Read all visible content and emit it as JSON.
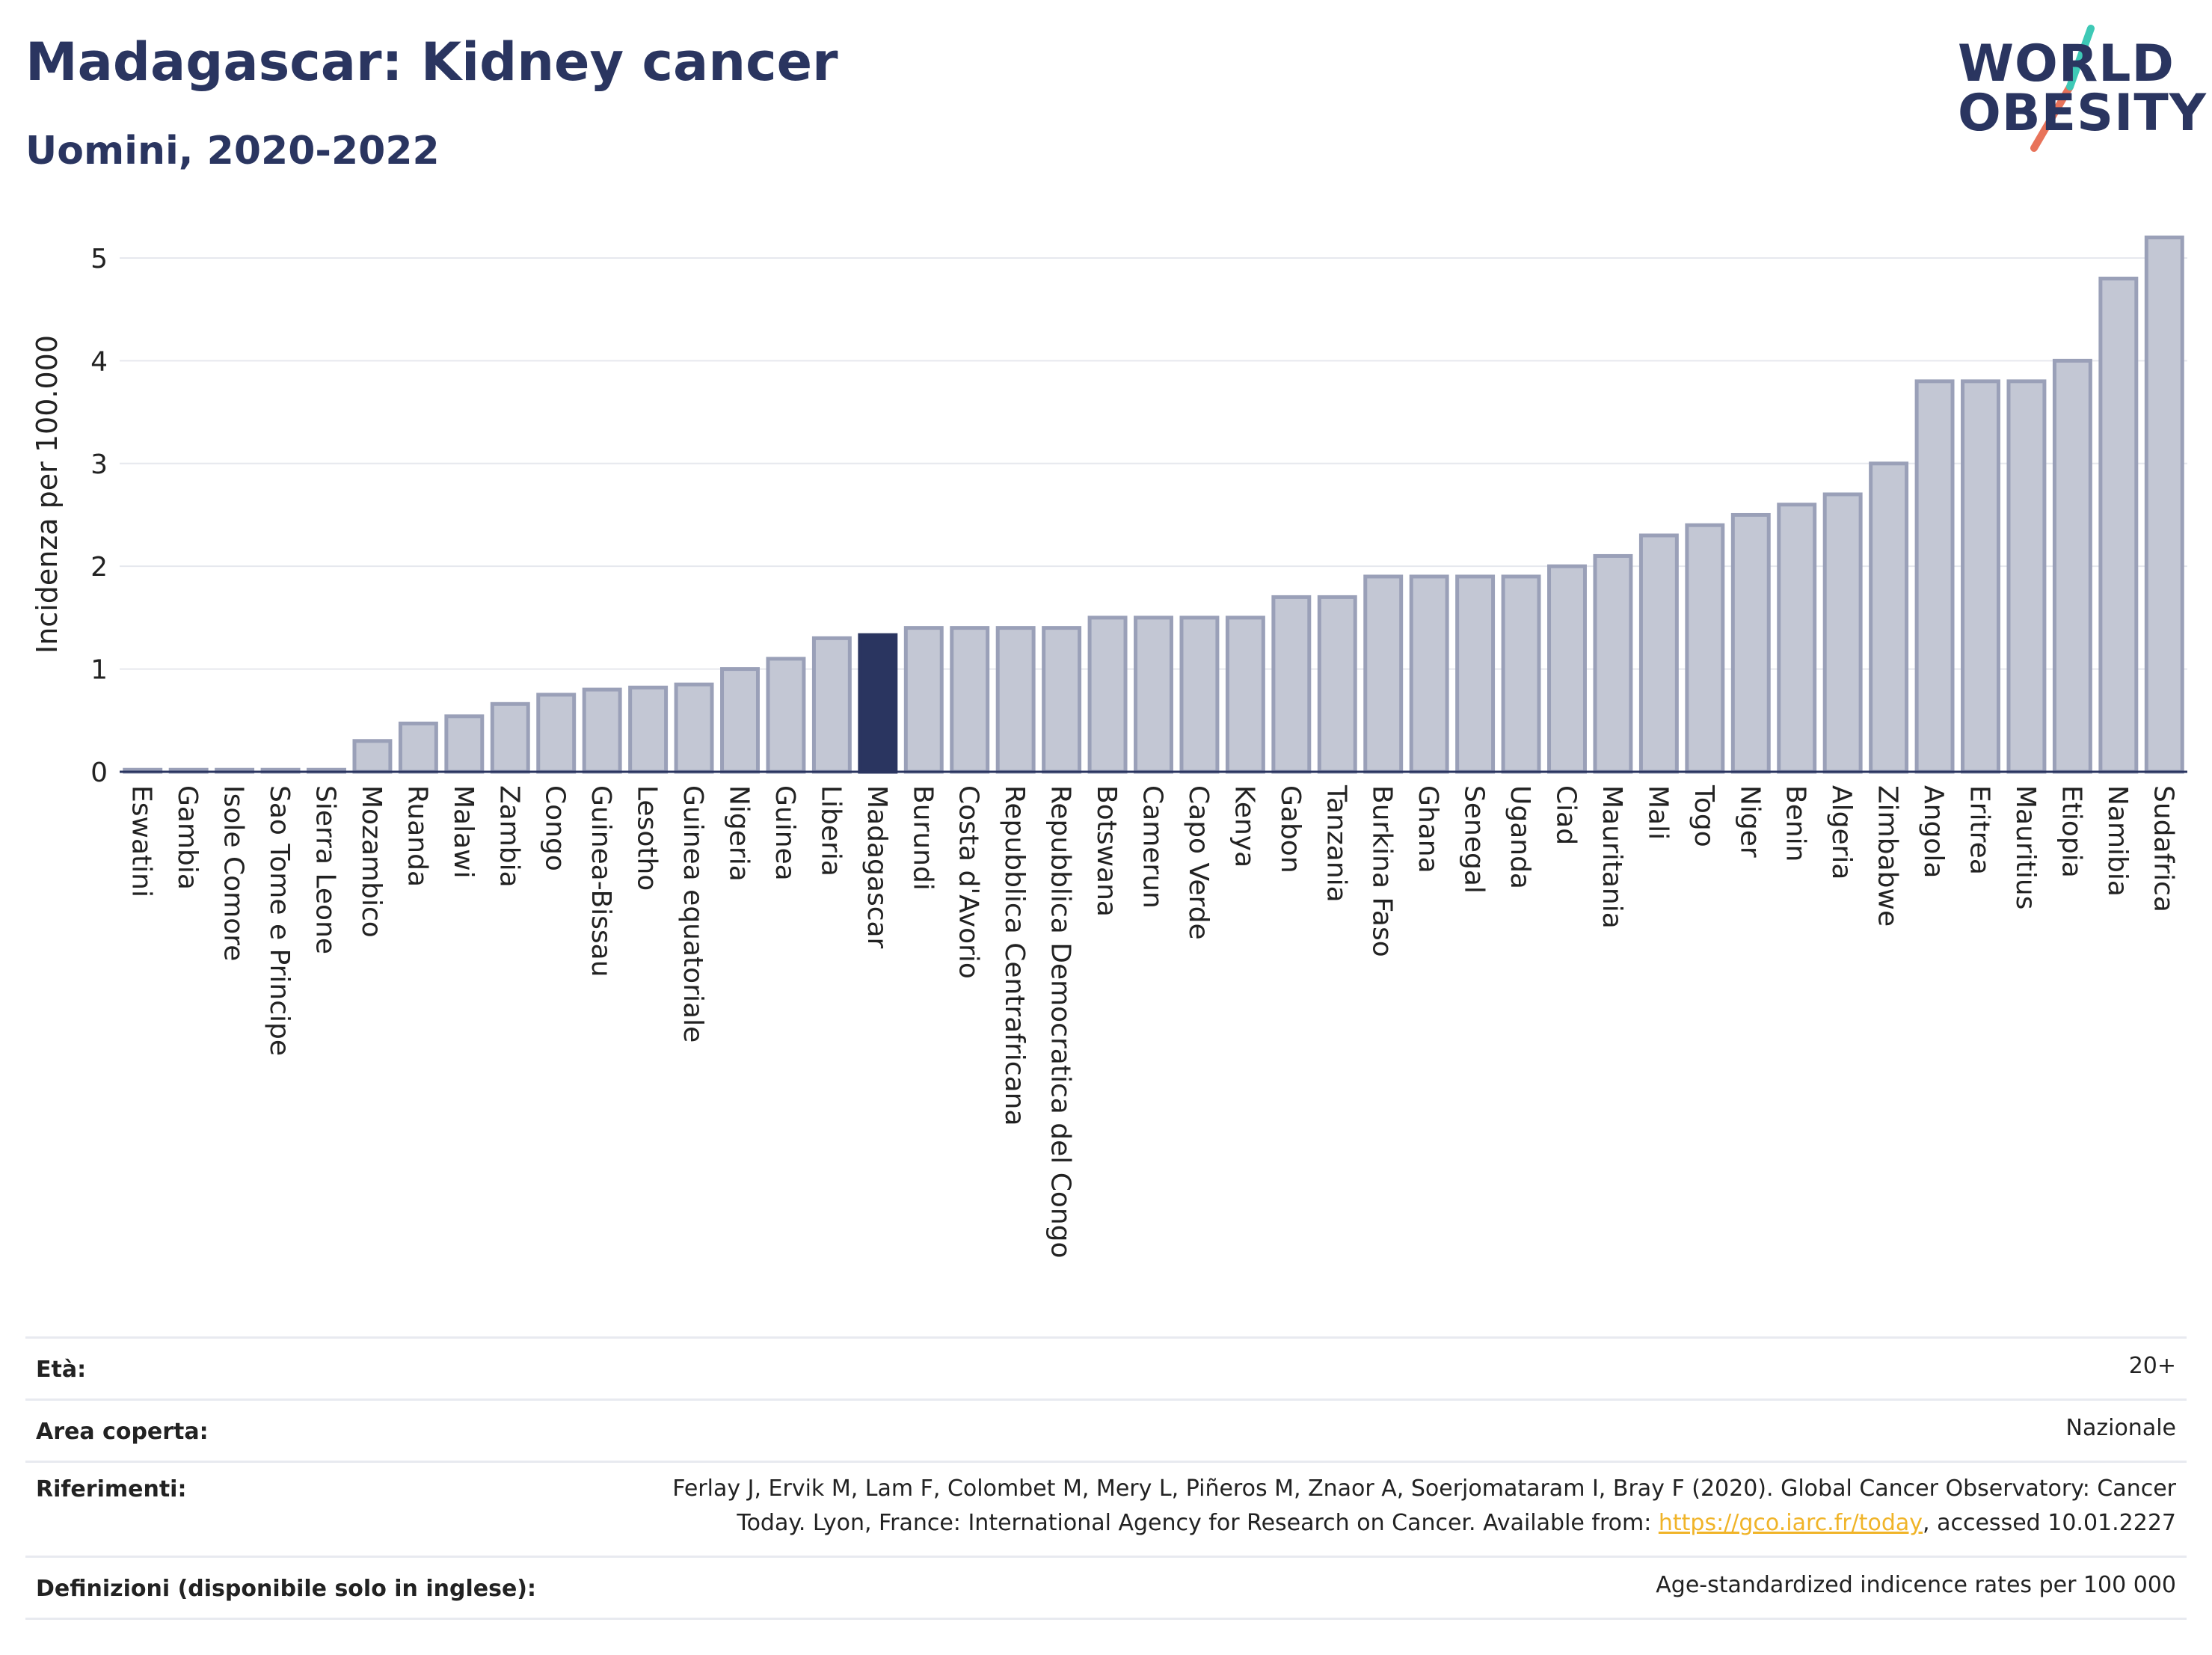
{
  "header": {
    "title": "Madagascar: Kidney cancer",
    "subtitle": "Uomini, 2020-2022"
  },
  "logo": {
    "line1": "WORLD",
    "line2": "OBESITY",
    "accent_colors": [
      "#3ec9b6",
      "#e8735a"
    ]
  },
  "chart_data": {
    "type": "bar",
    "title": "",
    "xlabel": "",
    "ylabel": "Incidenza per 100.000",
    "ylim": [
      0,
      5.4
    ],
    "yticks": [
      0,
      1,
      2,
      3,
      4,
      5
    ],
    "highlight": "Madagascar",
    "colors": {
      "bar": "#c3c7d4",
      "bar_edge": "#9aa0b8",
      "highlight": "#2a3560"
    },
    "categories": [
      "Eswatini",
      "Gambia",
      "Isole Comore",
      "Sao Tome e Principe",
      "Sierra Leone",
      "Mozambico",
      "Ruanda",
      "Malawi",
      "Zambia",
      "Congo",
      "Guinea-Bissau",
      "Lesotho",
      "Guinea equatoriale",
      "Nigeria",
      "Guinea",
      "Liberia",
      "Madagascar",
      "Burundi",
      "Costa d'Avorio",
      "Repubblica Centrafricana",
      "Repubblica Democratica del Congo",
      "Botswana",
      "Camerun",
      "Capo Verde",
      "Kenya",
      "Gabon",
      "Tanzania",
      "Burkina Faso",
      "Ghana",
      "Senegal",
      "Uganda",
      "Ciad",
      "Mauritania",
      "Mali",
      "Togo",
      "Niger",
      "Benin",
      "Algeria",
      "Zimbabwe",
      "Angola",
      "Eritrea",
      "Mauritius",
      "Etiopia",
      "Namibia",
      "Sudafrica"
    ],
    "values": [
      0.02,
      0.02,
      0.02,
      0.02,
      0.02,
      0.3,
      0.47,
      0.54,
      0.66,
      0.75,
      0.8,
      0.82,
      0.85,
      1.0,
      1.1,
      1.3,
      1.33,
      1.4,
      1.4,
      1.4,
      1.4,
      1.5,
      1.5,
      1.5,
      1.5,
      1.7,
      1.7,
      1.9,
      1.9,
      1.9,
      1.9,
      2.0,
      2.1,
      2.3,
      2.4,
      2.5,
      2.6,
      2.7,
      3.0,
      3.8,
      3.8,
      3.8,
      4.0,
      4.8,
      5.2
    ]
  },
  "meta": {
    "eta_label": "Età:",
    "eta_value": "20+",
    "area_label": "Area coperta:",
    "area_value": "Nazionale",
    "ref_label": "Riferimenti:",
    "ref_line1": "Ferlay J, Ervik M, Lam F, Colombet M, Mery L, Piñeros M, Znaor A, Soerjomataram I, Bray F (2020). Global Cancer Observatory: Cancer",
    "ref_line2_pre": "Today. Lyon, France: International Agency for Research on Cancer. Available from: ",
    "ref_link": "https://gco.iarc.fr/today",
    "ref_line2_post": ", accessed 10.01.2227",
    "def_label": "Definizioni (disponibile solo in inglese):",
    "def_value": "Age-standardized indicence rates per 100 000"
  }
}
